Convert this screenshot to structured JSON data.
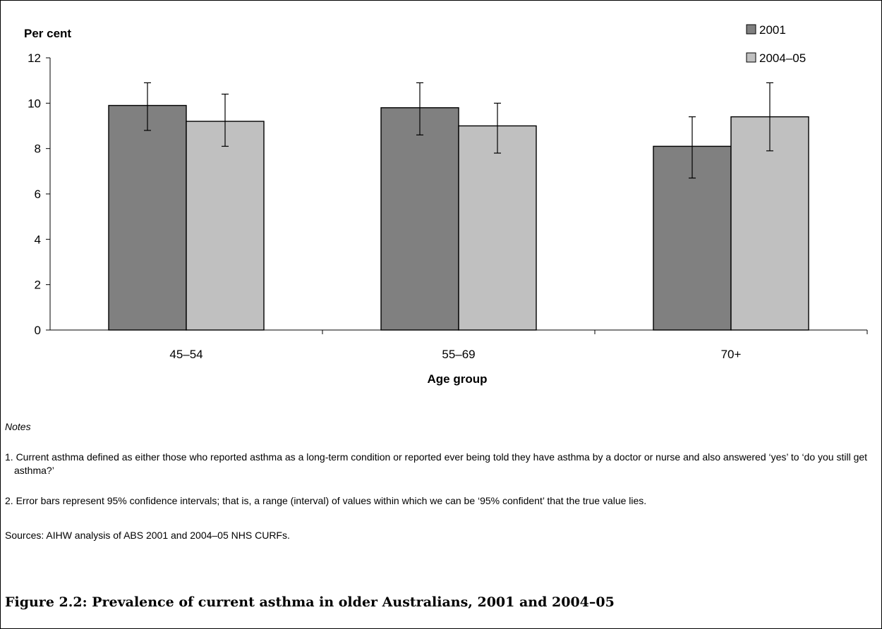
{
  "chart_data": {
    "type": "bar",
    "ylabel": "Per cent",
    "xlabel": "Age group",
    "categories": [
      "45–54",
      "55–69",
      "70+"
    ],
    "ylim": [
      0,
      12
    ],
    "yticks": [
      0,
      2,
      4,
      6,
      8,
      10,
      12
    ],
    "grid": false,
    "legend_position": "top-right",
    "series": [
      {
        "name": "2001",
        "color": "#808080",
        "values": [
          9.9,
          9.8,
          8.1
        ],
        "ci_low": [
          8.8,
          8.6,
          6.7
        ],
        "ci_high": [
          10.9,
          10.9,
          9.4
        ]
      },
      {
        "name": "2004–05",
        "color": "#c0c0c0",
        "values": [
          9.2,
          9.0,
          9.4
        ],
        "ci_low": [
          8.1,
          7.8,
          7.9
        ],
        "ci_high": [
          10.4,
          10.0,
          10.9
        ]
      }
    ]
  },
  "notes": {
    "heading": "Notes",
    "items": [
      "1. Current asthma defined as either those who reported asthma as a long-term condition or reported ever being told they have asthma by a doctor or nurse and also answered ‘yes’ to ‘do you still get asthma?’",
      "2. Error bars represent 95% confidence intervals; that is, a range (interval) of values within which we can be ‘95% confident’ that the true value lies."
    ],
    "sources": "Sources: AIHW analysis of ABS 2001 and 2004–05 NHS CURFs."
  },
  "caption": "Figure 2.2: Prevalence of current asthma in older Australians, 2001 and 2004–05"
}
